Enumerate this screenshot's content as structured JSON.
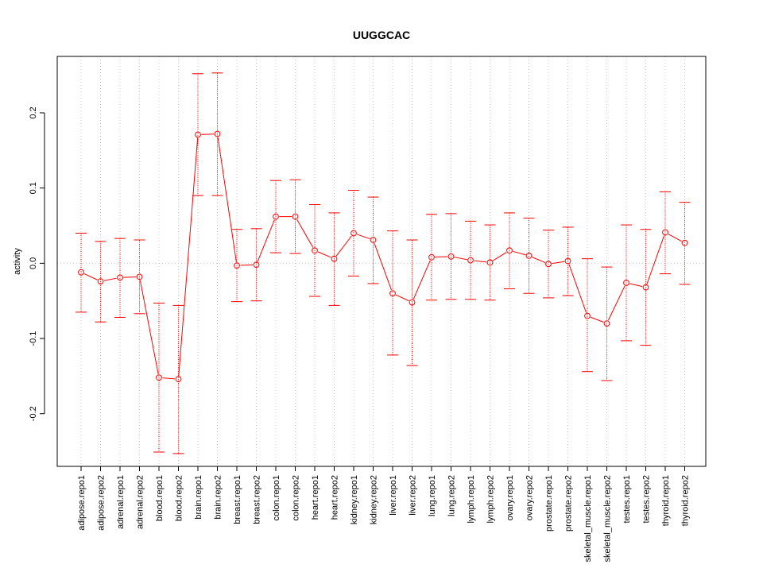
{
  "chart_data": {
    "type": "line",
    "title": "UUGGCAC",
    "xlabel": "",
    "ylabel": "activity",
    "ylim": [
      -0.27,
      0.275
    ],
    "yticks": [
      -0.2,
      -0.1,
      0.0,
      0.1,
      0.2
    ],
    "ytick_labels": [
      "-0.2",
      "-0.1",
      "0.0",
      "0.1",
      "0.2"
    ],
    "grid": true,
    "reference_line": 0.0,
    "series_color": "#ff0000",
    "grid_color": "#cccccc",
    "categories": [
      "adipose.repo1",
      "adipose.repo2",
      "adrenal.repo1",
      "adrenal.repo2",
      "blood.repo1",
      "blood.repo2",
      "brain.repo1",
      "brain.repo2",
      "breast.repo1",
      "breast.repo2",
      "colon.repo1",
      "colon.repo2",
      "heart.repo1",
      "heart.repo2",
      "kidney.repo1",
      "kidney.repo2",
      "liver.repo1",
      "liver.repo2",
      "lung.repo1",
      "lung.repo2",
      "lymph.repo1",
      "lymph.repo2",
      "ovary.repo1",
      "ovary.repo2",
      "prostate.repo1",
      "prostate.repo2",
      "skeletal_muscle.repo1",
      "skeletal_muscle.repo2",
      "testes.repo1",
      "testes.repo2",
      "thyroid.repo1",
      "thyroid.repo2"
    ],
    "values": [
      -0.012,
      -0.024,
      -0.019,
      -0.018,
      -0.152,
      -0.154,
      0.171,
      0.172,
      -0.003,
      -0.002,
      0.062,
      0.062,
      0.017,
      0.006,
      0.04,
      0.031,
      -0.04,
      -0.052,
      0.008,
      0.009,
      0.004,
      0.001,
      0.017,
      0.01,
      -0.001,
      0.003,
      -0.07,
      -0.08,
      -0.026,
      -0.032,
      0.041,
      0.027
    ],
    "upper": [
      0.04,
      0.029,
      0.033,
      0.031,
      -0.053,
      -0.056,
      0.252,
      0.253,
      0.045,
      0.046,
      0.11,
      0.111,
      0.078,
      0.067,
      0.097,
      0.088,
      0.043,
      0.031,
      0.065,
      0.066,
      0.056,
      0.051,
      0.067,
      0.06,
      0.044,
      0.048,
      0.006,
      -0.005,
      0.051,
      0.045,
      0.095,
      0.081
    ],
    "lower": [
      -0.065,
      -0.078,
      -0.072,
      -0.067,
      -0.251,
      -0.253,
      0.09,
      0.09,
      -0.051,
      -0.05,
      0.014,
      0.013,
      -0.044,
      -0.056,
      -0.017,
      -0.027,
      -0.122,
      -0.136,
      -0.049,
      -0.048,
      -0.048,
      -0.049,
      -0.034,
      -0.04,
      -0.046,
      -0.043,
      -0.144,
      -0.156,
      -0.103,
      -0.109,
      -0.014,
      -0.028
    ]
  }
}
